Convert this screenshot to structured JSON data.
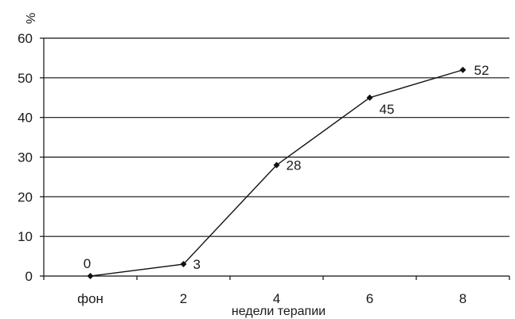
{
  "chart_data": {
    "type": "line",
    "title": "",
    "ylabel": "%",
    "xlabel": "недели терапии",
    "categories": [
      "фон",
      "2",
      "4",
      "6",
      "8"
    ],
    "series": [
      {
        "values": [
          0,
          3,
          28,
          45,
          52
        ]
      }
    ],
    "data_labels": [
      "0",
      "3",
      "28",
      "45",
      "52"
    ],
    "ylim": [
      0,
      60
    ],
    "yticks": [
      0,
      10,
      20,
      30,
      40,
      50,
      60
    ],
    "grid": "horizontal",
    "legend": "none",
    "colors": {
      "line": "#111111",
      "grid": "#111111",
      "text": "#1a1a1a"
    }
  }
}
